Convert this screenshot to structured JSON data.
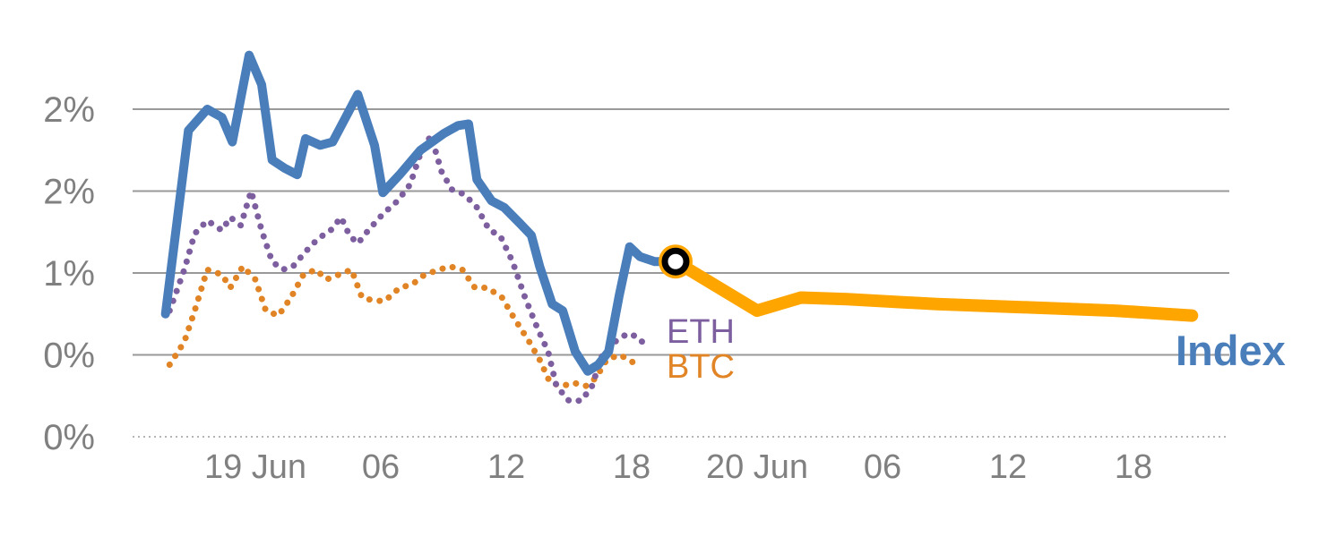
{
  "labels": {
    "index": "Index",
    "eth": "ETH",
    "btc": "BTC"
  },
  "colors": {
    "index": "#4a7ebb",
    "forecast": "#ffa500",
    "eth": "#7d5fa0",
    "btc": "#e08425",
    "grid": "#999999",
    "axis_line": "#b5b5b5",
    "axis_text": "#808080",
    "marker_ring": "#000000",
    "marker_center": "#ffffff"
  },
  "chart_data": {
    "type": "line",
    "title": "",
    "xlabel": "",
    "ylabel": "",
    "x_axis": {
      "unit": "hours from 19 Jun 00:00",
      "min": -6,
      "max": 46.6,
      "ticks": [
        {
          "t": 0,
          "label": "19 Jun"
        },
        {
          "t": 6,
          "label": "06"
        },
        {
          "t": 12,
          "label": "12"
        },
        {
          "t": 18,
          "label": "18"
        },
        {
          "t": 24,
          "label": "20 Jun"
        },
        {
          "t": 30,
          "label": "06"
        },
        {
          "t": 36,
          "label": "12"
        },
        {
          "t": 42,
          "label": "18"
        }
      ]
    },
    "y_axis": {
      "unit": "%",
      "min": 0.0,
      "max": 2.4,
      "ticks": [
        {
          "value": 2.0,
          "label": "2%"
        },
        {
          "value": 1.5,
          "label": "2%"
        },
        {
          "value": 1.0,
          "label": "1%"
        },
        {
          "value": 0.5,
          "label": "0%"
        },
        {
          "value": 0.0,
          "label": "0%"
        }
      ]
    },
    "series": [
      {
        "name": "BTC",
        "style": "dotted",
        "color_key": "btc",
        "points": [
          [
            -4.1,
            0.44
          ],
          [
            -3.4,
            0.58
          ],
          [
            -2.9,
            0.77
          ],
          [
            -2.3,
            1.02
          ],
          [
            -1.6,
            0.99
          ],
          [
            -1.2,
            0.91
          ],
          [
            -0.6,
            1.04
          ],
          [
            0.0,
            0.96
          ],
          [
            0.5,
            0.77
          ],
          [
            1.1,
            0.74
          ],
          [
            1.7,
            0.85
          ],
          [
            2.3,
            0.99
          ],
          [
            2.9,
            1.02
          ],
          [
            3.4,
            0.96
          ],
          [
            4.0,
            0.99
          ],
          [
            4.6,
            1.02
          ],
          [
            5.1,
            0.85
          ],
          [
            5.7,
            0.83
          ],
          [
            6.2,
            0.83
          ],
          [
            6.9,
            0.91
          ],
          [
            7.5,
            0.93
          ],
          [
            8.1,
            0.99
          ],
          [
            8.8,
            1.02
          ],
          [
            9.3,
            1.04
          ],
          [
            9.9,
            1.02
          ],
          [
            10.5,
            0.91
          ],
          [
            11.1,
            0.91
          ],
          [
            11.8,
            0.85
          ],
          [
            12.4,
            0.72
          ],
          [
            13.1,
            0.58
          ],
          [
            13.6,
            0.47
          ],
          [
            14.1,
            0.33
          ],
          [
            14.7,
            0.31
          ],
          [
            15.2,
            0.33
          ],
          [
            15.8,
            0.31
          ],
          [
            16.3,
            0.36
          ],
          [
            16.8,
            0.47
          ],
          [
            17.4,
            0.5
          ],
          [
            17.9,
            0.47
          ],
          [
            18.4,
            0.42
          ]
        ]
      },
      {
        "name": "ETH",
        "style": "dotted",
        "color_key": "eth",
        "points": [
          [
            -4.1,
            0.77
          ],
          [
            -3.4,
            1.02
          ],
          [
            -2.9,
            1.24
          ],
          [
            -2.3,
            1.32
          ],
          [
            -1.6,
            1.26
          ],
          [
            -1.2,
            1.34
          ],
          [
            -0.7,
            1.29
          ],
          [
            -0.2,
            1.5
          ],
          [
            0.3,
            1.26
          ],
          [
            0.8,
            1.07
          ],
          [
            1.3,
            1.02
          ],
          [
            1.8,
            1.04
          ],
          [
            2.4,
            1.13
          ],
          [
            3.0,
            1.21
          ],
          [
            3.6,
            1.26
          ],
          [
            4.1,
            1.34
          ],
          [
            4.5,
            1.23
          ],
          [
            4.9,
            1.18
          ],
          [
            5.4,
            1.26
          ],
          [
            6.1,
            1.36
          ],
          [
            6.8,
            1.44
          ],
          [
            7.4,
            1.54
          ],
          [
            7.9,
            1.73
          ],
          [
            8.4,
            1.84
          ],
          [
            8.9,
            1.62
          ],
          [
            9.4,
            1.51
          ],
          [
            10.0,
            1.48
          ],
          [
            10.6,
            1.4
          ],
          [
            11.2,
            1.26
          ],
          [
            11.7,
            1.23
          ],
          [
            12.3,
            1.07
          ],
          [
            12.9,
            0.85
          ],
          [
            13.5,
            0.66
          ],
          [
            14.0,
            0.52
          ],
          [
            14.4,
            0.31
          ],
          [
            15.0,
            0.22
          ],
          [
            15.6,
            0.22
          ],
          [
            16.1,
            0.31
          ],
          [
            16.6,
            0.5
          ],
          [
            17.2,
            0.58
          ],
          [
            17.8,
            0.63
          ],
          [
            18.3,
            0.61
          ],
          [
            18.7,
            0.55
          ]
        ]
      },
      {
        "name": "Index",
        "style": "solid",
        "color_key": "index",
        "points": [
          [
            -4.3,
            0.75
          ],
          [
            -3.2,
            1.87
          ],
          [
            -2.3,
            2.0
          ],
          [
            -1.6,
            1.95
          ],
          [
            -1.1,
            1.8
          ],
          [
            -0.3,
            2.33
          ],
          [
            0.3,
            2.15
          ],
          [
            0.8,
            1.69
          ],
          [
            1.4,
            1.64
          ],
          [
            2.0,
            1.6
          ],
          [
            2.4,
            1.82
          ],
          [
            3.1,
            1.78
          ],
          [
            3.7,
            1.8
          ],
          [
            4.9,
            2.09
          ],
          [
            5.7,
            1.78
          ],
          [
            6.1,
            1.49
          ],
          [
            6.9,
            1.6
          ],
          [
            7.9,
            1.75
          ],
          [
            9.0,
            1.85
          ],
          [
            9.7,
            1.9
          ],
          [
            10.2,
            1.91
          ],
          [
            10.6,
            1.57
          ],
          [
            11.3,
            1.44
          ],
          [
            11.9,
            1.4
          ],
          [
            12.6,
            1.31
          ],
          [
            13.2,
            1.23
          ],
          [
            13.6,
            1.04
          ],
          [
            14.2,
            0.81
          ],
          [
            14.7,
            0.77
          ],
          [
            15.3,
            0.52
          ],
          [
            15.9,
            0.4
          ],
          [
            16.4,
            0.44
          ],
          [
            16.9,
            0.52
          ],
          [
            17.4,
            0.86
          ],
          [
            17.9,
            1.16
          ],
          [
            18.4,
            1.1
          ],
          [
            19.1,
            1.07
          ],
          [
            20.1,
            1.07
          ]
        ]
      },
      {
        "name": "Index forecast",
        "style": "solid-thick",
        "color_key": "forecast",
        "points": [
          [
            20.1,
            1.07
          ],
          [
            24.0,
            0.77
          ],
          [
            26.1,
            0.85
          ],
          [
            28.3,
            0.84
          ],
          [
            32.6,
            0.81
          ],
          [
            36.9,
            0.79
          ],
          [
            41.1,
            0.77
          ],
          [
            44.8,
            0.74
          ]
        ]
      }
    ],
    "marker": {
      "t": 20.1,
      "value": 1.07,
      "series": "Index forecast"
    },
    "legend": [
      "Index",
      "ETH",
      "BTC"
    ],
    "grid": "horizontal-only"
  }
}
